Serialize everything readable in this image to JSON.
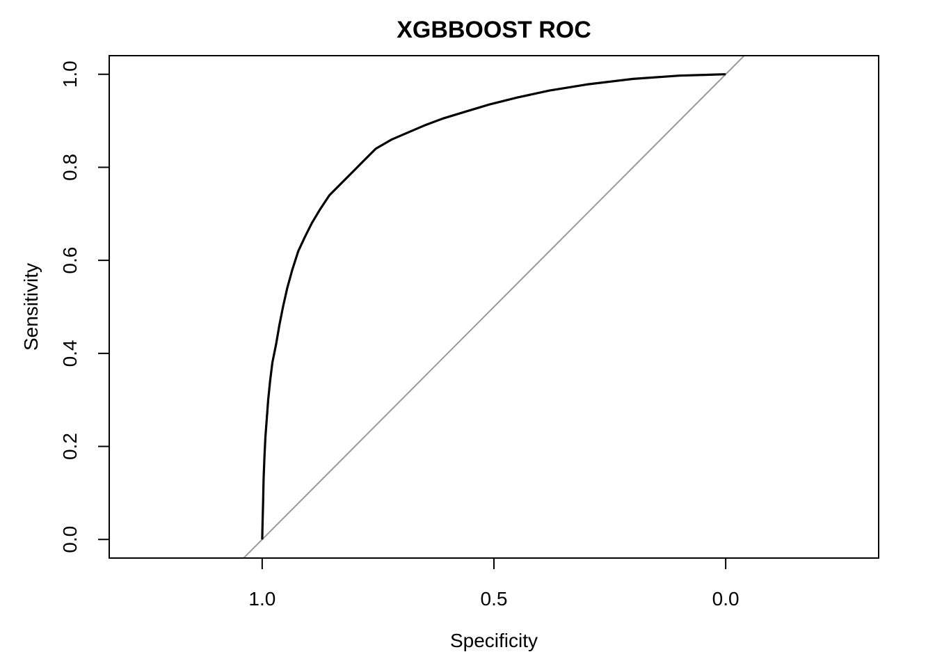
{
  "chart_data": {
    "type": "line",
    "title": "XGBBOOST ROC",
    "xlabel": "Specificity",
    "ylabel": "Sensitivity",
    "xlim": [
      1.33,
      -0.33
    ],
    "ylim": [
      -0.04,
      1.04
    ],
    "x_axis_reversed": true,
    "xticks": [
      1.0,
      0.5,
      0.0
    ],
    "xtick_labels": [
      "1.0",
      "0.5",
      "0.0"
    ],
    "yticks": [
      0.0,
      0.2,
      0.4,
      0.6,
      0.8,
      1.0
    ],
    "ytick_labels": [
      "0.0",
      "0.2",
      "0.4",
      "0.6",
      "0.8",
      "1.0"
    ],
    "grid": false,
    "colors": {
      "curve": "#000000",
      "reference": "#999999"
    },
    "reference_line": {
      "name": "",
      "x": [
        1.04,
        -0.04
      ],
      "y": [
        -0.04,
        1.04
      ]
    },
    "series": [
      {
        "name": "",
        "x": [
          1.0,
          0.999,
          0.998,
          0.997,
          0.995,
          0.993,
          0.99,
          0.987,
          0.983,
          0.978,
          0.97,
          0.963,
          0.955,
          0.946,
          0.935,
          0.922,
          0.908,
          0.893,
          0.875,
          0.855,
          0.835,
          0.81,
          0.785,
          0.755,
          0.72,
          0.685,
          0.65,
          0.61,
          0.56,
          0.51,
          0.45,
          0.38,
          0.3,
          0.2,
          0.1,
          0.0
        ],
        "y": [
          0.0,
          0.04,
          0.08,
          0.13,
          0.18,
          0.22,
          0.26,
          0.3,
          0.34,
          0.38,
          0.42,
          0.46,
          0.5,
          0.54,
          0.58,
          0.62,
          0.65,
          0.68,
          0.71,
          0.74,
          0.76,
          0.785,
          0.81,
          0.84,
          0.86,
          0.875,
          0.89,
          0.905,
          0.92,
          0.935,
          0.95,
          0.965,
          0.978,
          0.99,
          0.997,
          1.0
        ]
      }
    ]
  }
}
